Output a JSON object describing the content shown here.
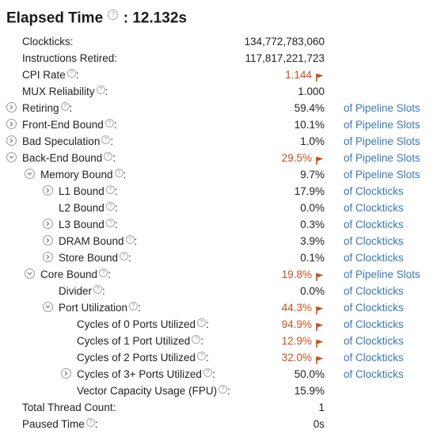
{
  "title": {
    "label": "Elapsed Time",
    "value": "12.132s"
  },
  "colors": {
    "warning": "#c8501e",
    "link": "#3a78b5"
  },
  "rows": [
    {
      "label": "Clockticks:",
      "value": "134,772,783,060",
      "unit": "",
      "warn": false,
      "help": false,
      "expander": "none",
      "indent": 0
    },
    {
      "label": "Instructions Retired:",
      "value": "117,817,221,723",
      "unit": "",
      "warn": false,
      "help": false,
      "expander": "none",
      "indent": 0
    },
    {
      "label": "CPI Rate",
      "value": "1.144",
      "unit": "",
      "warn": true,
      "help": true,
      "expander": "none",
      "indent": 0
    },
    {
      "label": "MUX Reliability",
      "value": "1.000",
      "unit": "",
      "warn": false,
      "help": true,
      "expander": "none",
      "indent": 0
    },
    {
      "label": "Retiring",
      "value": "59.4%",
      "unit": "of Pipeline Slots",
      "warn": false,
      "help": true,
      "expander": "collapsed",
      "indent": 0
    },
    {
      "label": "Front-End Bound",
      "value": "10.1%",
      "unit": "of Pipeline Slots",
      "warn": false,
      "help": true,
      "expander": "collapsed",
      "indent": 0
    },
    {
      "label": "Bad Speculation",
      "value": "1.0%",
      "unit": "of Pipeline Slots",
      "warn": false,
      "help": true,
      "expander": "collapsed",
      "indent": 0
    },
    {
      "label": "Back-End Bound",
      "value": "29.5%",
      "unit": "of Pipeline Slots",
      "warn": true,
      "help": true,
      "expander": "expanded",
      "indent": 0
    },
    {
      "label": "Memory Bound",
      "value": "9.7%",
      "unit": "of Pipeline Slots",
      "warn": false,
      "help": true,
      "expander": "expanded",
      "indent": 1
    },
    {
      "label": "L1 Bound",
      "value": "17.9%",
      "unit": "of Clockticks",
      "warn": false,
      "help": true,
      "expander": "collapsed",
      "indent": 2
    },
    {
      "label": "L2 Bound",
      "value": "0.0%",
      "unit": "of Clockticks",
      "warn": false,
      "help": true,
      "expander": "none",
      "indent": 2
    },
    {
      "label": "L3 Bound",
      "value": "0.3%",
      "unit": "of Clockticks",
      "warn": false,
      "help": true,
      "expander": "collapsed",
      "indent": 2
    },
    {
      "label": "DRAM Bound",
      "value": "3.9%",
      "unit": "of Clockticks",
      "warn": false,
      "help": true,
      "expander": "collapsed",
      "indent": 2
    },
    {
      "label": "Store Bound",
      "value": "0.1%",
      "unit": "of Clockticks",
      "warn": false,
      "help": true,
      "expander": "collapsed",
      "indent": 2
    },
    {
      "label": "Core Bound",
      "value": "19.8%",
      "unit": "of Pipeline Slots",
      "warn": true,
      "help": true,
      "expander": "expanded",
      "indent": 1
    },
    {
      "label": "Divider",
      "value": "0.0%",
      "unit": "of Clockticks",
      "warn": false,
      "help": true,
      "expander": "none",
      "indent": 2
    },
    {
      "label": "Port Utilization",
      "value": "44.3%",
      "unit": "of Clockticks",
      "warn": true,
      "help": true,
      "expander": "expanded",
      "indent": 2
    },
    {
      "label": "Cycles of 0 Ports Utilized",
      "value": "94.9%",
      "unit": "of Clockticks",
      "warn": true,
      "help": true,
      "expander": "none",
      "indent": 3
    },
    {
      "label": "Cycles of 1 Port Utilized",
      "value": "12.9%",
      "unit": "of Clockticks",
      "warn": true,
      "help": true,
      "expander": "none",
      "indent": 3
    },
    {
      "label": "Cycles of 2 Ports Utilized",
      "value": "32.0%",
      "unit": "of Clockticks",
      "warn": true,
      "help": true,
      "expander": "none",
      "indent": 3
    },
    {
      "label": "Cycles of 3+ Ports Utilized",
      "value": "50.0%",
      "unit": "of Clockticks",
      "warn": false,
      "help": true,
      "expander": "collapsed",
      "indent": 3
    },
    {
      "label": "Vector Capacity Usage (FPU)",
      "value": "15.9%",
      "unit": "",
      "warn": false,
      "help": true,
      "expander": "none",
      "indent": 3
    },
    {
      "label": "Total Thread Count:",
      "value": "1",
      "unit": "",
      "warn": false,
      "help": false,
      "expander": "none",
      "indent": 0
    },
    {
      "label": "Paused Time",
      "value": "0s",
      "unit": "",
      "warn": false,
      "help": true,
      "expander": "none",
      "indent": 0
    }
  ]
}
